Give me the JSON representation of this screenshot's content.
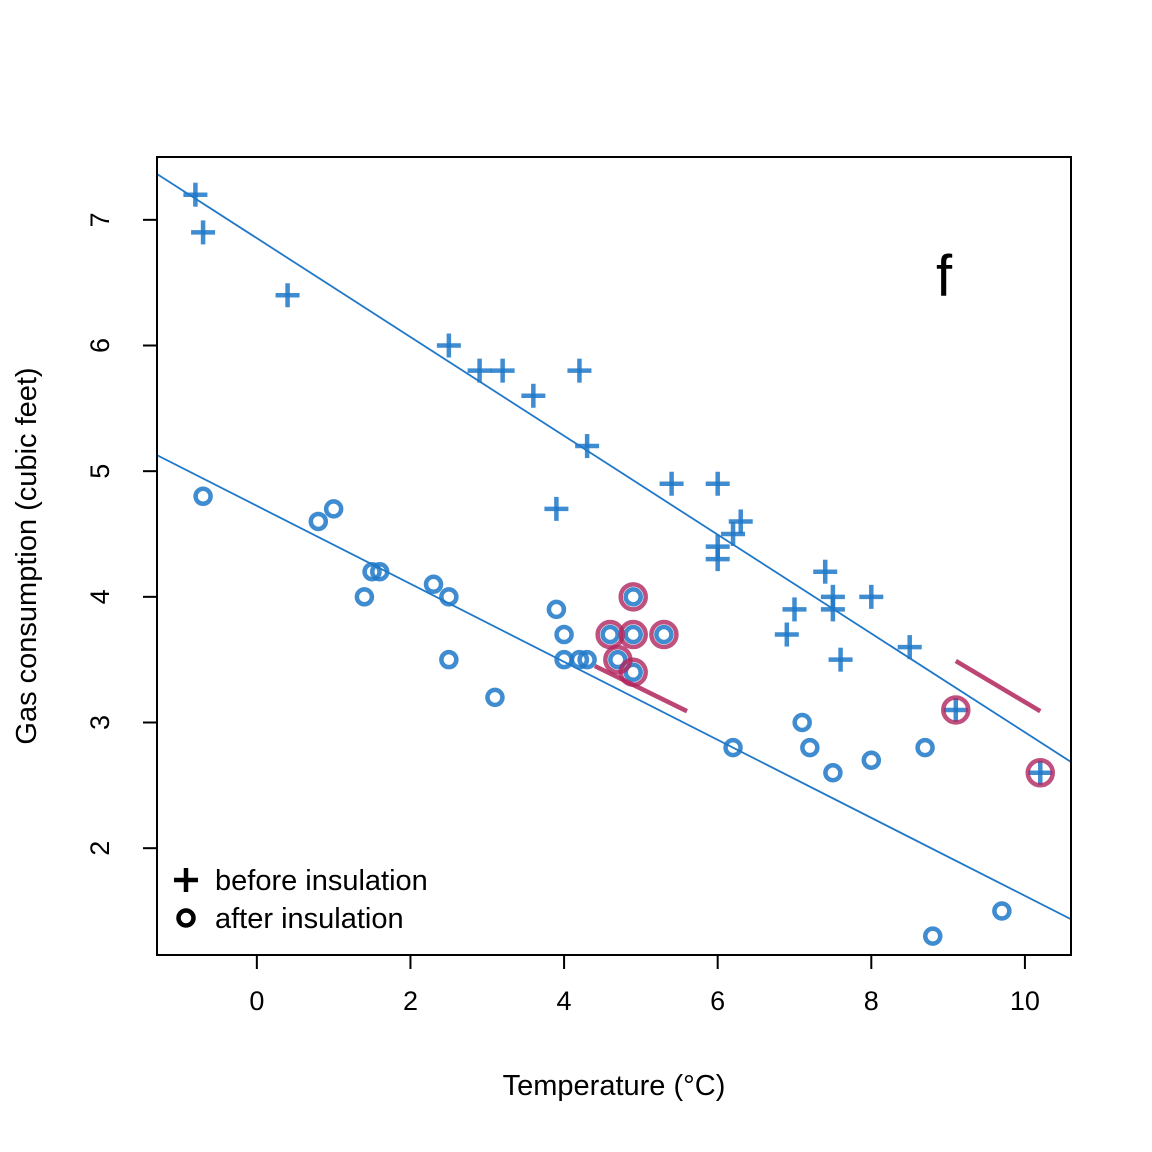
{
  "chart_data": {
    "type": "scatter",
    "panel_label": "f",
    "xlabel": "Temperature (°C)",
    "ylabel": "Gas consumption (cubic feet)",
    "xlim": [
      -1.3,
      10.6
    ],
    "ylim": [
      1.15,
      7.5
    ],
    "xticks": [
      0,
      2,
      4,
      6,
      8,
      10
    ],
    "yticks": [
      2,
      3,
      4,
      5,
      6,
      7
    ],
    "grid": false,
    "legend_position": "bottom-left",
    "colors": {
      "points": "#1f78c8",
      "highlight": "#b0245c",
      "axis": "#000000"
    },
    "legend": [
      {
        "marker": "plus",
        "label": "before insulation"
      },
      {
        "marker": "circle",
        "label": "after insulation"
      }
    ],
    "series": [
      {
        "name": "before insulation",
        "marker": "plus",
        "points": [
          [
            -0.8,
            7.2
          ],
          [
            -0.7,
            6.9
          ],
          [
            0.4,
            6.4
          ],
          [
            2.5,
            6.0
          ],
          [
            2.9,
            5.8
          ],
          [
            3.2,
            5.8
          ],
          [
            3.6,
            5.6
          ],
          [
            3.9,
            4.7
          ],
          [
            4.2,
            5.8
          ],
          [
            4.3,
            5.2
          ],
          [
            5.4,
            4.9
          ],
          [
            6.0,
            4.9
          ],
          [
            6.0,
            4.3
          ],
          [
            6.0,
            4.4
          ],
          [
            6.2,
            4.5
          ],
          [
            6.3,
            4.6
          ],
          [
            6.9,
            3.7
          ],
          [
            7.0,
            3.9
          ],
          [
            7.4,
            4.2
          ],
          [
            7.5,
            4.0
          ],
          [
            7.5,
            3.9
          ],
          [
            7.6,
            3.5
          ],
          [
            8.0,
            4.0
          ],
          [
            8.5,
            3.6
          ],
          [
            9.1,
            3.1
          ],
          [
            10.2,
            2.6
          ]
        ]
      },
      {
        "name": "after insulation",
        "marker": "circle",
        "points": [
          [
            -0.7,
            4.8
          ],
          [
            0.8,
            4.6
          ],
          [
            1.0,
            4.7
          ],
          [
            1.4,
            4.0
          ],
          [
            1.5,
            4.2
          ],
          [
            1.6,
            4.2
          ],
          [
            2.3,
            4.1
          ],
          [
            2.5,
            4.0
          ],
          [
            2.5,
            3.5
          ],
          [
            3.1,
            3.2
          ],
          [
            3.9,
            3.9
          ],
          [
            4.0,
            3.7
          ],
          [
            4.0,
            3.5
          ],
          [
            4.2,
            3.5
          ],
          [
            4.3,
            3.5
          ],
          [
            4.6,
            3.7
          ],
          [
            4.7,
            3.5
          ],
          [
            4.9,
            3.7
          ],
          [
            4.9,
            3.4
          ],
          [
            4.9,
            4.0
          ],
          [
            5.3,
            3.7
          ],
          [
            6.2,
            2.8
          ],
          [
            7.1,
            3.0
          ],
          [
            7.2,
            2.8
          ],
          [
            7.5,
            2.6
          ],
          [
            8.0,
            2.7
          ],
          [
            8.7,
            2.8
          ],
          [
            8.8,
            1.3
          ],
          [
            9.7,
            1.5
          ]
        ]
      }
    ],
    "fit_lines": [
      {
        "series": "before insulation",
        "intercept": 6.854,
        "slope": -0.3932
      },
      {
        "series": "after insulation",
        "intercept": 4.724,
        "slope": -0.3103
      }
    ],
    "highlighted_points": [
      [
        4.6,
        3.7
      ],
      [
        4.7,
        3.5
      ],
      [
        4.9,
        3.7
      ],
      [
        4.9,
        3.4
      ],
      [
        4.9,
        4.0
      ],
      [
        5.3,
        3.7
      ],
      [
        9.1,
        3.1
      ],
      [
        10.2,
        2.6
      ]
    ],
    "highlighted_segments": [
      [
        [
          4.4,
          3.45
        ],
        [
          5.6,
          3.09
        ]
      ],
      [
        [
          9.1,
          3.49
        ],
        [
          10.2,
          3.09
        ]
      ]
    ]
  }
}
